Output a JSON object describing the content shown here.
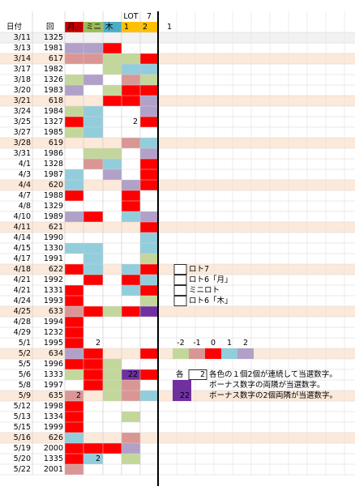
{
  "sheet": {
    "header": {
      "date": "日付",
      "number": "回",
      "columns": [
        {
          "label": "月",
          "color": "#c00000"
        },
        {
          "label": "ミニ",
          "color": "#9bbb59"
        },
        {
          "label": "木",
          "color": "#4bacc6"
        },
        {
          "top": "LOT",
          "label": "1",
          "color": "#ffc000"
        },
        {
          "top": "7",
          "label": "2",
          "color": "#ffc000"
        }
      ],
      "extra": "1"
    },
    "rows": [
      {
        "date": "3/11",
        "number": "1325",
        "bg": "#f2f2f2",
        "cells": [
          null,
          null,
          null,
          null,
          null
        ]
      },
      {
        "date": "3/13",
        "number": "1981",
        "cells": [
          "#b1a0c7",
          "#b1a0c7",
          "#ff0000",
          null,
          null
        ]
      },
      {
        "date": "3/14",
        "number": "617",
        "bg": "#fde9d9",
        "cells": [
          "#da9694",
          "#da9694",
          "#c4d79b",
          "#c4d79b",
          "#ff0000"
        ]
      },
      {
        "date": "3/17",
        "number": "1982",
        "cells": [
          null,
          null,
          "#c4d79b",
          "#92cddc",
          "#92cddc"
        ]
      },
      {
        "date": "3/18",
        "number": "1326",
        "cells": [
          "#c4d79b",
          "#b1a0c7",
          null,
          "#da9694",
          "#c4d79b"
        ]
      },
      {
        "date": "3/20",
        "number": "1983",
        "cells": [
          "#b1a0c7",
          null,
          "#c4d79b",
          "#ff0000",
          "#ff0000"
        ]
      },
      {
        "date": "3/21",
        "number": "618",
        "bg": "#fde9d9",
        "cells": [
          null,
          null,
          "#ff0000",
          "#ff0000",
          "#b1a0c7"
        ]
      },
      {
        "date": "3/24",
        "number": "1984",
        "cells": [
          "#c4d79b",
          "#92cddc",
          null,
          null,
          "#b1a0c7"
        ]
      },
      {
        "date": "3/25",
        "number": "1327",
        "cells": [
          "#ff0000",
          "#92cddc",
          null,
          {
            "color": null,
            "text": "2"
          },
          "#ff0000"
        ]
      },
      {
        "date": "3/27",
        "number": "1985",
        "cells": [
          "#c4d79b",
          "#92cddc",
          null,
          null,
          null
        ]
      },
      {
        "date": "3/28",
        "number": "619",
        "bg": "#fde9d9",
        "cells": [
          null,
          null,
          null,
          "#da9694",
          "#92cddc"
        ]
      },
      {
        "date": "3/31",
        "number": "1986",
        "cells": [
          null,
          "#c4d79b",
          "#c4d79b",
          null,
          "#b1a0c7"
        ]
      },
      {
        "date": "4/1",
        "number": "1328",
        "cells": [
          null,
          "#da9694",
          "#92cddc",
          null,
          "#ff0000"
        ]
      },
      {
        "date": "4/3",
        "number": "1987",
        "cells": [
          "#92cddc",
          null,
          "#b1a0c7",
          null,
          "#ff0000"
        ]
      },
      {
        "date": "4/4",
        "number": "620",
        "bg": "#fde9d9",
        "cells": [
          "#92cddc",
          null,
          null,
          "#b1a0c7",
          "#ff0000"
        ]
      },
      {
        "date": "4/7",
        "number": "1988",
        "cells": [
          "#ff0000",
          null,
          null,
          "#ff0000",
          null
        ]
      },
      {
        "date": "4/8",
        "number": "1329",
        "cells": [
          null,
          null,
          null,
          "#ff0000",
          null
        ]
      },
      {
        "date": "4/10",
        "number": "1989",
        "cells": [
          "#b1a0c7",
          "#ff0000",
          null,
          "#92cddc",
          "#b1a0c7"
        ]
      },
      {
        "date": "4/11",
        "number": "621",
        "bg": "#fde9d9",
        "cells": [
          null,
          null,
          null,
          null,
          "#ff0000"
        ]
      },
      {
        "date": "4/14",
        "number": "1990",
        "cells": [
          null,
          null,
          null,
          null,
          "#92cddc"
        ]
      },
      {
        "date": "4/15",
        "number": "1330",
        "cells": [
          "#92cddc",
          "#92cddc",
          null,
          null,
          "#92cddc"
        ]
      },
      {
        "date": "4/17",
        "number": "1991",
        "cells": [
          null,
          "#92cddc",
          null,
          null,
          "#c4d79b"
        ]
      },
      {
        "date": "4/18",
        "number": "622",
        "bg": "#fde9d9",
        "cells": [
          "#ff0000",
          "#92cddc",
          null,
          "#92cddc",
          "#ff0000"
        ]
      },
      {
        "date": "4/21",
        "number": "1992",
        "cells": [
          null,
          "#ff0000",
          null,
          "#ff0000",
          "#92cddc"
        ]
      },
      {
        "date": "4/21",
        "number": "1331",
        "cells": [
          "#ff0000",
          null,
          null,
          "#92cddc",
          "#ff0000"
        ]
      },
      {
        "date": "4/24",
        "number": "1993",
        "cells": [
          "#ff0000",
          null,
          null,
          null,
          "#c4d79b"
        ]
      },
      {
        "date": "4/25",
        "number": "633",
        "bg": "#fde9d9",
        "cells": [
          "#da9694",
          "#ff0000",
          "#c4d79b",
          "#ff0000",
          "#7030a0"
        ]
      },
      {
        "date": "4/28",
        "number": "1994",
        "cells": [
          "#ff0000",
          null,
          null,
          null,
          null
        ]
      },
      {
        "date": "4/29",
        "number": "1232",
        "cells": [
          "#ff0000",
          null,
          null,
          null,
          null
        ]
      },
      {
        "date": "5/1",
        "number": "1995",
        "cells": [
          "#ff0000",
          {
            "color": null,
            "text": "2"
          },
          null,
          null,
          null
        ]
      },
      {
        "date": "5/2",
        "number": "634",
        "bg": "#fde9d9",
        "cells": [
          "#b1a0c7",
          "#ff0000",
          null,
          null,
          "#ff0000"
        ]
      },
      {
        "date": "5/5",
        "number": "1996",
        "cells": [
          "#ff0000",
          "#ff0000",
          "#c4d79b",
          null,
          null
        ]
      },
      {
        "date": "5/6",
        "number": "1333",
        "cells": [
          "#c4d79b",
          "#ff0000",
          "#c4d79b",
          {
            "color": "#7030a0",
            "text": "22"
          },
          "#ff0000"
        ]
      },
      {
        "date": "5/8",
        "number": "1997",
        "cells": [
          null,
          "#ff0000",
          "#c4d79b",
          "#da9694",
          null
        ]
      },
      {
        "date": "5/9",
        "number": "635",
        "bg": "#fde9d9",
        "cells": [
          {
            "color": "#da9694",
            "text": "2"
          },
          null,
          "#c4d79b",
          "#da9694",
          "#92cddc"
        ]
      },
      {
        "date": "5/12",
        "number": "1998",
        "cells": [
          "#ff0000",
          null,
          null,
          null,
          null
        ]
      },
      {
        "date": "5/13",
        "number": "1334",
        "cells": [
          "#ff0000",
          null,
          null,
          "#c4d79b",
          null
        ]
      },
      {
        "date": "5/15",
        "number": "1999",
        "cells": [
          "#ff0000",
          null,
          null,
          null,
          null
        ]
      },
      {
        "date": "5/16",
        "number": "626",
        "bg": "#fde9d9",
        "cells": [
          "#92cddc",
          null,
          null,
          "#da9694",
          null
        ]
      },
      {
        "date": "5/19",
        "number": "2000",
        "cells": [
          "#ff0000",
          "#ff0000",
          "#ff0000",
          "#b1a0c7",
          null
        ]
      },
      {
        "date": "5/20",
        "number": "1335",
        "cells": [
          "#ff0000",
          {
            "color": "#92cddc",
            "text": "2"
          },
          null,
          "#c4d79b",
          null
        ]
      },
      {
        "date": "5/22",
        "number": "2001",
        "cells": [
          "#da9694",
          null,
          null,
          null,
          null
        ]
      }
    ],
    "legend": [
      "ロト7",
      "ロト6「月」",
      "ミニロト",
      "ロト6「木」"
    ],
    "scale": [
      {
        "value": -2,
        "color": "#c4d79b"
      },
      {
        "value": -1,
        "color": "#da9694"
      },
      {
        "value": 0,
        "color": "#ff0000"
      },
      {
        "value": 1,
        "color": "#92cddc"
      },
      {
        "value": 2,
        "color": "#b1a0c7"
      }
    ],
    "notes": [
      {
        "prefix": "各",
        "box": "2",
        "text": "各色の１個2個が連続して当選数字。"
      },
      {
        "color": "#7030a0",
        "text": "ボーナス数字の両隣が当選数字。"
      },
      {
        "color": "#7030a0",
        "box": "22",
        "text": "ボーナス数字の2個両隣が当選数字。"
      }
    ]
  }
}
